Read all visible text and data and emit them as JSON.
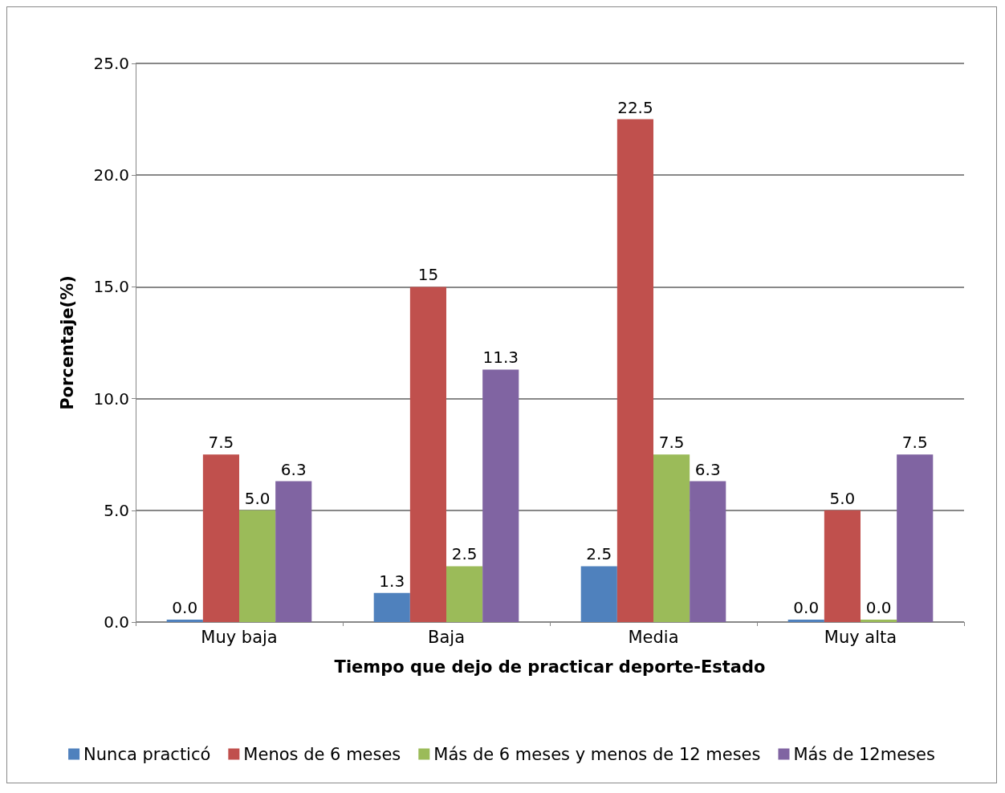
{
  "chart_data": {
    "type": "bar",
    "xlabel": "Tiempo que dejo de practicar deporte-Estado",
    "ylabel": "Porcentaje(%)",
    "categories": [
      "Muy baja",
      "Baja",
      "Media",
      "Muy alta"
    ],
    "series": [
      {
        "name": "Nunca practicó",
        "color": "#4f81bd",
        "values": [
          0.0,
          1.3,
          2.5,
          0.0
        ],
        "value_labels": [
          "0.0",
          "1.3",
          "2.5",
          "0.0"
        ]
      },
      {
        "name": "Menos de 6 meses",
        "color": "#c0504d",
        "values": [
          7.5,
          15,
          22.5,
          5.0
        ],
        "value_labels": [
          "7.5",
          "15",
          "22.5",
          "5.0"
        ]
      },
      {
        "name": "Más de 6 meses y menos de 12 meses",
        "color": "#9bbb59",
        "values": [
          5.0,
          2.5,
          7.5,
          0.0
        ],
        "value_labels": [
          "5.0",
          "2.5",
          "7.5",
          "0.0"
        ]
      },
      {
        "name": "Más de 12meses",
        "color": "#8064a2",
        "values": [
          6.3,
          11.3,
          6.3,
          7.5
        ],
        "value_labels": [
          "6.3",
          "11.3",
          "6.3",
          "7.5"
        ]
      }
    ],
    "ylim": [
      0,
      25
    ],
    "yticks": [
      {
        "value": 0,
        "label": "0.0"
      },
      {
        "value": 5,
        "label": "5.0"
      },
      {
        "value": 10,
        "label": "10.0"
      },
      {
        "value": 15,
        "label": "15.0"
      },
      {
        "value": 20,
        "label": "20.0"
      },
      {
        "value": 25,
        "label": "25.0"
      }
    ],
    "grid": "y",
    "legend": "bottom"
  }
}
